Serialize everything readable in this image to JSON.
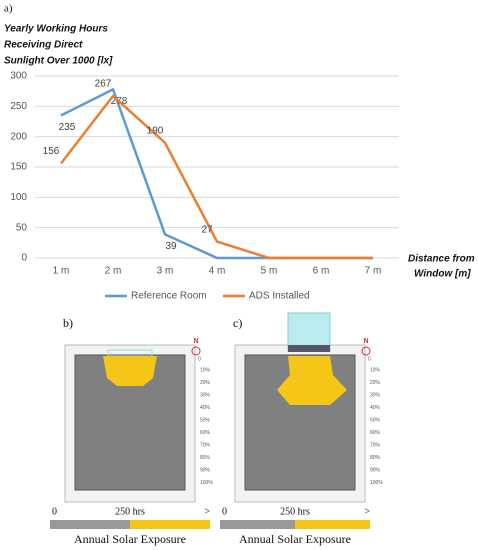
{
  "chart_data": {
    "type": "line",
    "panel_label": "a)",
    "y_label": [
      "Yearly Working Hours",
      "Receiving Direct",
      "Sunlight Over 1000 [lx]"
    ],
    "x_label": [
      "Distance from",
      "Window [m]"
    ],
    "categories": [
      "1 m",
      "2 m",
      "3 m",
      "4 m",
      "5 m",
      "6 m",
      "7 m"
    ],
    "series": [
      {
        "name": "Reference Room",
        "color": "#5b9bd5",
        "values": [
          235,
          278,
          39,
          0,
          0,
          0,
          0
        ]
      },
      {
        "name": "ADS Installed",
        "color": "#ed7d31",
        "values": [
          156,
          267,
          190,
          27,
          0,
          0,
          0
        ]
      }
    ],
    "ylim": [
      0,
      300
    ],
    "yticks": [
      0,
      50,
      100,
      150,
      200,
      250,
      300
    ],
    "grid": true,
    "legend": "bottom"
  },
  "diagrams": {
    "panels": [
      "b)",
      "c)"
    ],
    "north": "N",
    "scale_labels": [
      "10%",
      "20%",
      "30%",
      "40%",
      "50%",
      "60%",
      "70%",
      "80%",
      "90%",
      "100%"
    ],
    "scale_zero": "0",
    "legend": {
      "start": "0",
      "middle": "250 hrs",
      "end": ">",
      "title": "Annual Solar Exposure"
    }
  }
}
